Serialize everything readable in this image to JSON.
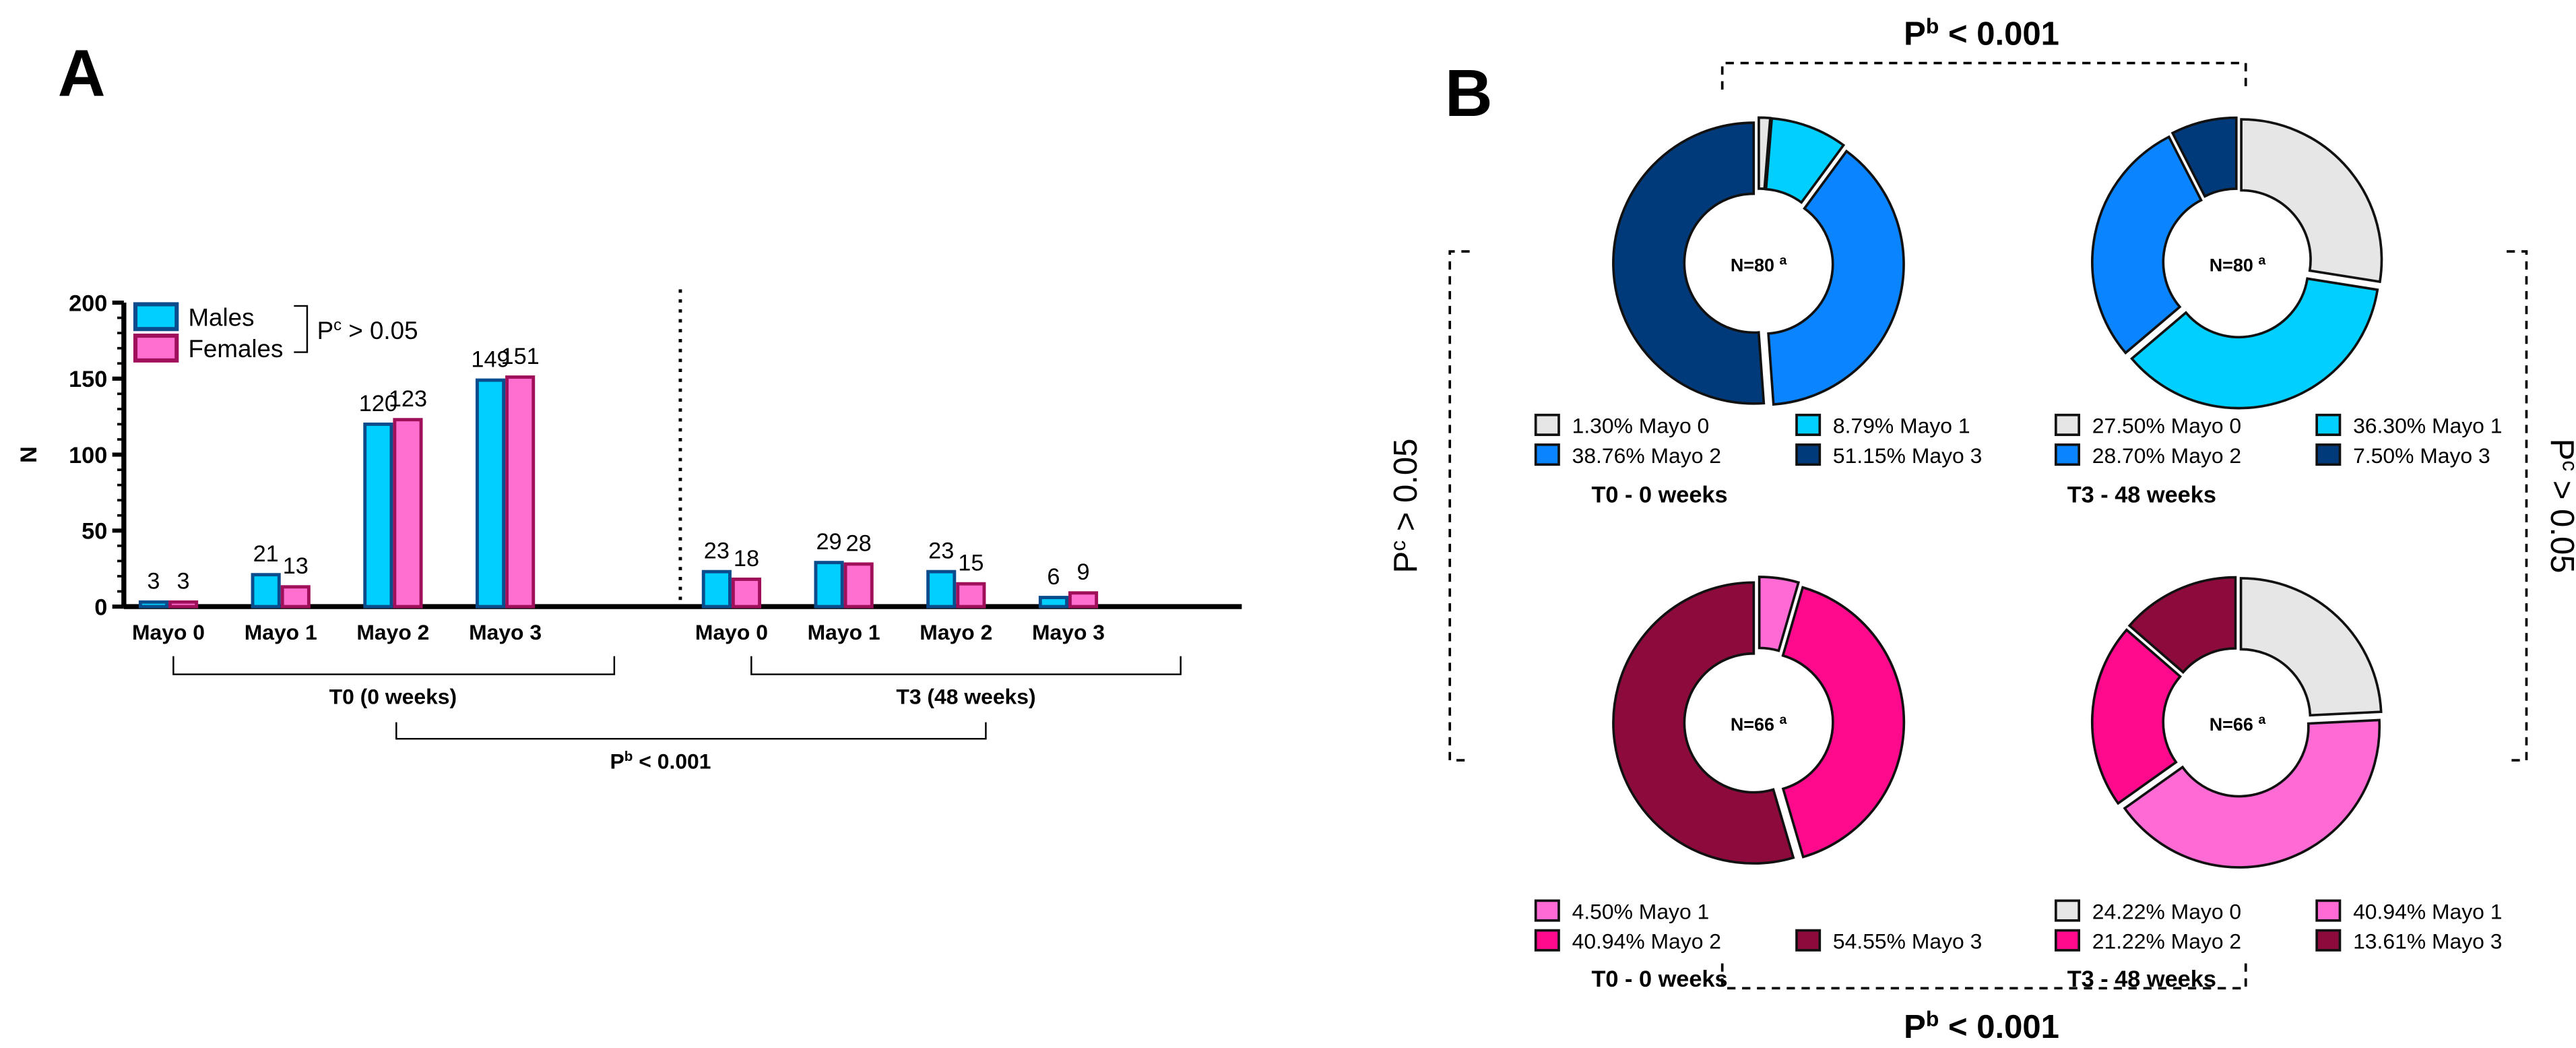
{
  "panel_labels": {
    "a": "A",
    "b": "B"
  },
  "chart_data": [
    {
      "type": "bar",
      "title": "",
      "ylabel": "N",
      "xlabel": "",
      "ylim": [
        0,
        200
      ],
      "yticks": [
        "0",
        "50",
        "100",
        "150",
        "200"
      ],
      "categories": [
        "Mayo 0",
        "Mayo 1",
        "Mayo 2",
        "Mayo 3",
        "Mayo 0",
        "Mayo 1",
        "Mayo 2",
        "Mayo 3"
      ],
      "groups": [
        {
          "label": "T0 (0 weeks)"
        },
        {
          "label": "T3 (48 weeks)"
        }
      ],
      "series": [
        {
          "name": "Males",
          "values": [
            3,
            21,
            120,
            149,
            23,
            29,
            23,
            6
          ],
          "color": "#00CFFF",
          "stroke": "#0B4C8C"
        },
        {
          "name": "Females",
          "values": [
            3,
            13,
            123,
            151,
            18,
            28,
            15,
            9
          ],
          "color": "#FF6FD0",
          "stroke": "#A0105A"
        }
      ],
      "legend_placement": "top-left",
      "annotations": {
        "legend_p": {
          "base": "P",
          "sup": "c",
          "rest": " > 0.05"
        },
        "between_p": {
          "base": "P",
          "sup": "b",
          "rest": " < 0.001"
        }
      }
    },
    {
      "type": "pie",
      "variant": "donut",
      "panels": [
        {
          "title": "T0 - 0 weeks",
          "center": "N=80",
          "center_sup": "a",
          "slices": [
            {
              "label": "Mayo 0",
              "value": 1.3,
              "text": "1.30%",
              "color": "#E6E6E6"
            },
            {
              "label": "Mayo 1",
              "value": 8.79,
              "text": "8.79%",
              "color": "#00CFFF"
            },
            {
              "label": "Mayo 2",
              "value": 38.76,
              "text": "38.76%",
              "color": "#0A84FF"
            },
            {
              "label": "Mayo 3",
              "value": 51.15,
              "text": "51.15%",
              "color": "#003A7A"
            }
          ]
        },
        {
          "title": "T3 - 48 weeks",
          "center": "N=80",
          "center_sup": "a",
          "slices": [
            {
              "label": "Mayo 0",
              "value": 27.5,
              "text": "27.50%",
              "color": "#E6E6E6"
            },
            {
              "label": "Mayo 1",
              "value": 36.3,
              "text": "36.30%",
              "color": "#00CFFF"
            },
            {
              "label": "Mayo 2",
              "value": 28.7,
              "text": "28.70%",
              "color": "#0A84FF"
            },
            {
              "label": "Mayo 3",
              "value": 7.5,
              "text": "7.50%",
              "color": "#003A7A"
            }
          ]
        },
        {
          "title": "T0 - 0 weeks",
          "center": "N=66",
          "center_sup": "a",
          "slices": [
            {
              "label": "Mayo 1",
              "value": 4.5,
              "text": "4.50%",
              "color": "#FF6AD5"
            },
            {
              "label": "Mayo 2",
              "value": 40.94,
              "text": "40.94%",
              "color": "#FF0A8C"
            },
            {
              "label": "Mayo 3",
              "value": 54.55,
              "text": "54.55%",
              "color": "#8C0A3C"
            }
          ]
        },
        {
          "title": "T3 - 48 weeks",
          "center": "N=66",
          "center_sup": "a",
          "slices": [
            {
              "label": "Mayo 0",
              "value": 24.22,
              "text": "24.22%",
              "color": "#E6E6E6"
            },
            {
              "label": "Mayo 1",
              "value": 40.94,
              "text": "40.94%",
              "color": "#FF6AD5"
            },
            {
              "label": "Mayo 2",
              "value": 21.22,
              "text": "21.22%",
              "color": "#FF0A8C"
            },
            {
              "label": "Mayo 3",
              "value": 13.61,
              "text": "13.61%",
              "color": "#8C0A3C"
            }
          ]
        }
      ],
      "annotations": {
        "top_p": {
          "base": "P",
          "sup": "b",
          "rest": " < 0.001"
        },
        "bottom_p": {
          "base": "P",
          "sup": "b",
          "rest": " < 0.001"
        },
        "left_p": {
          "base": "P",
          "sup": "c",
          "rest": " > 0.05"
        },
        "right_p": {
          "base": "P",
          "sup": "c",
          "rest": " > 0.05"
        }
      }
    }
  ]
}
